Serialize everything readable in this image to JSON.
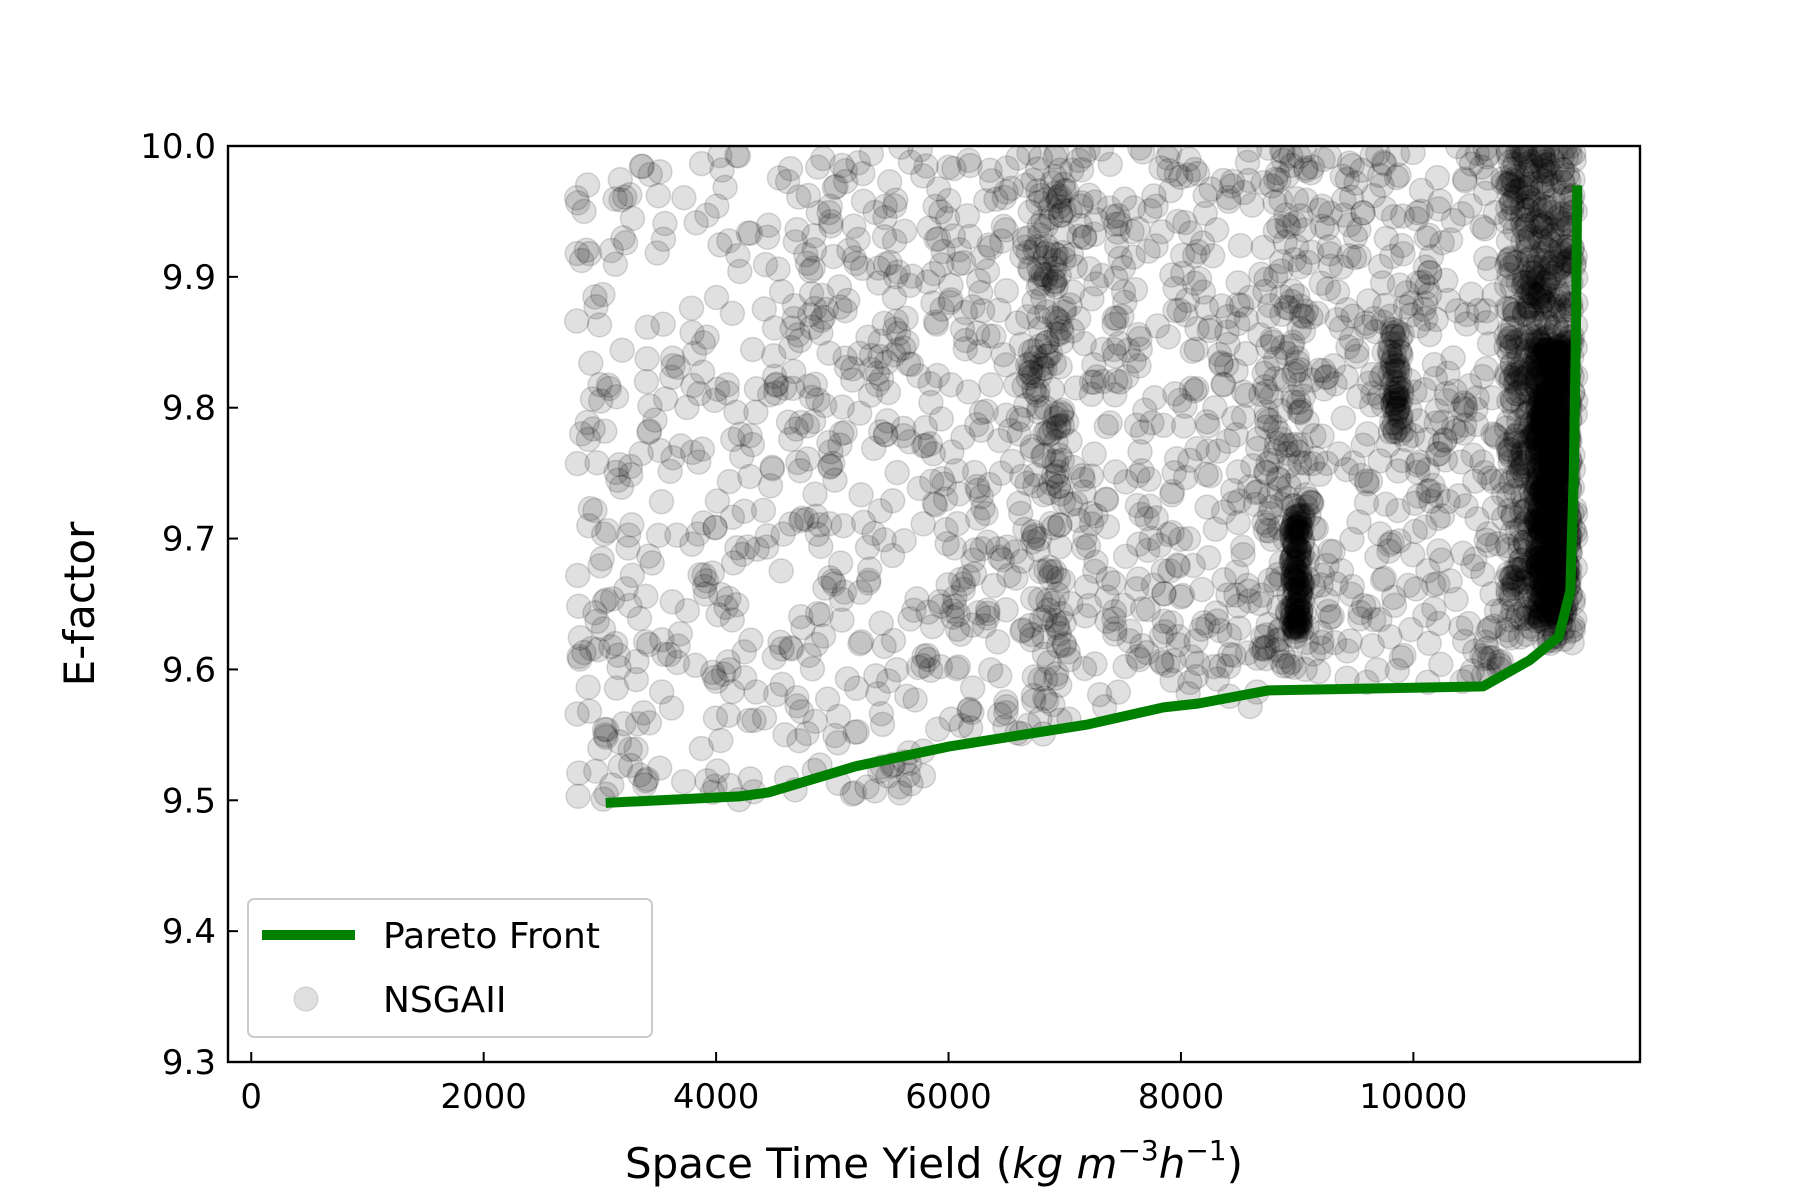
{
  "chart_data": {
    "type": "scatter",
    "title": "",
    "xlabel": {
      "text": "Space Time Yield (",
      "unit_parts": [
        "kg m",
        "−3",
        "h",
        "−1"
      ],
      "close": ")"
    },
    "ylabel": "E-factor",
    "xlim": [
      -200,
      11950
    ],
    "ylim": [
      9.3,
      10.0
    ],
    "x_ticks": [
      0,
      2000,
      4000,
      6000,
      8000,
      10000
    ],
    "x_tick_labels": [
      "0",
      "2000",
      "4000",
      "6000",
      "8000",
      "10000"
    ],
    "y_ticks": [
      9.3,
      9.4,
      9.5,
      9.6,
      9.7,
      9.8,
      9.9,
      10.0
    ],
    "y_tick_labels": [
      "9.3",
      "9.4",
      "9.5",
      "9.6",
      "9.7",
      "9.8",
      "9.9",
      "10.0"
    ],
    "grid": false,
    "legend": {
      "placement": "lower-left",
      "entries": [
        {
          "label": "Pareto Front",
          "kind": "line",
          "color": "#008000"
        },
        {
          "label": "NSGAII",
          "kind": "marker",
          "color": "#000000"
        }
      ]
    },
    "series": [
      {
        "name": "Pareto Front",
        "kind": "line",
        "color": "#008000",
        "x": [
          3050,
          4200,
          4450,
          5200,
          6000,
          7200,
          7850,
          8150,
          8750,
          10000,
          10600,
          11000,
          11250,
          11350,
          11380,
          11400,
          11410
        ],
        "y": [
          9.498,
          9.503,
          9.506,
          9.526,
          9.541,
          9.558,
          9.571,
          9.574,
          9.584,
          9.586,
          9.587,
          9.607,
          9.625,
          9.66,
          9.75,
          9.87,
          9.97
        ]
      },
      {
        "name": "NSGAII",
        "kind": "scatter",
        "color": "#000000",
        "alpha": 0.12,
        "seed": 7,
        "x_range": [
          2800,
          11450
        ],
        "y_range": [
          9.5,
          10.0
        ],
        "clusters": [
          {
            "x": [
              2800,
              5800
            ],
            "y": [
              9.5,
              10.0
            ],
            "n": 520
          },
          {
            "x": [
              5800,
              7200
            ],
            "y": [
              9.55,
              10.0
            ],
            "n": 300
          },
          {
            "x": [
              6700,
              7000
            ],
            "y": [
              9.56,
              10.0
            ],
            "n": 120
          },
          {
            "x": [
              7200,
              8700
            ],
            "y": [
              9.57,
              10.0
            ],
            "n": 300
          },
          {
            "x": [
              8700,
              9100
            ],
            "y": [
              9.6,
              10.0
            ],
            "n": 180
          },
          {
            "x": [
              8950,
              9050
            ],
            "y": [
              9.63,
              9.72
            ],
            "n": 120
          },
          {
            "x": [
              9100,
              10800
            ],
            "y": [
              9.59,
              10.0
            ],
            "n": 360
          },
          {
            "x": [
              9800,
              9900
            ],
            "y": [
              9.78,
              9.86
            ],
            "n": 60
          },
          {
            "x": [
              10800,
              11400
            ],
            "y": [
              9.62,
              10.0
            ],
            "n": 700
          },
          {
            "x": [
              11050,
              11350
            ],
            "y": [
              9.64,
              9.85
            ],
            "n": 600
          }
        ]
      }
    ]
  }
}
